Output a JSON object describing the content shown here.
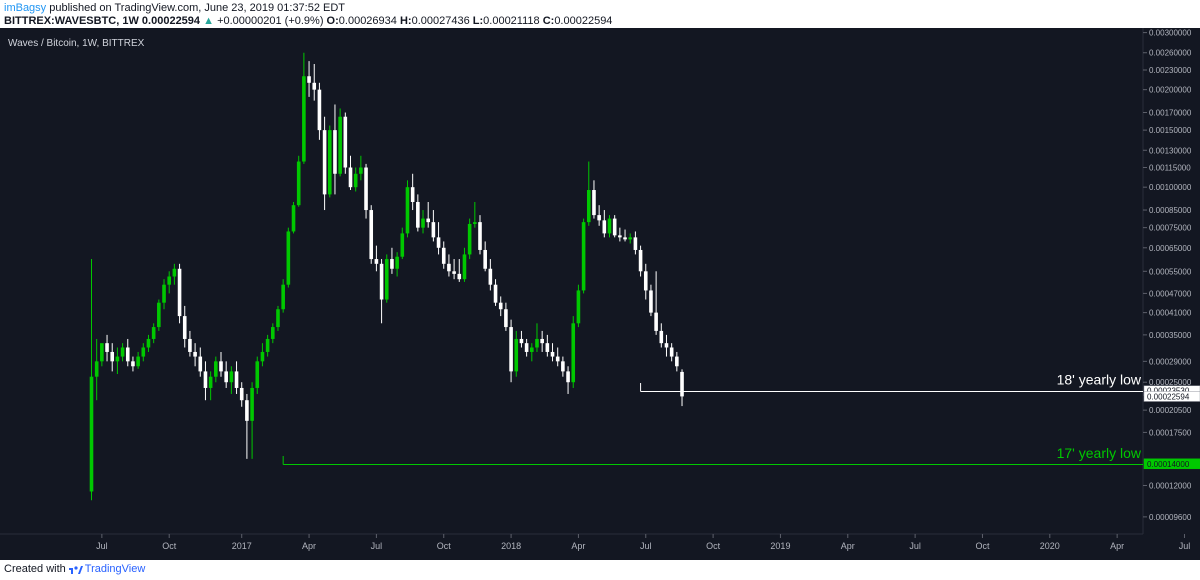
{
  "header": {
    "author": "imBagsy",
    "published": "published on TradingView.com, June 23, 2019 01:37:52 EDT",
    "symbol": "BITTREX:WAVESBTC, 1W",
    "last": "0.00022594",
    "change": "+0.00000201 (+0.9%)",
    "o_label": "O:",
    "o": "0.00026934",
    "h_label": "H:",
    "h": "0.00027436",
    "l_label": "L:",
    "l": "0.00021118",
    "c_label": "C:",
    "c": "0.00022594"
  },
  "footer": {
    "created": "Created with",
    "brand": "TradingView"
  },
  "colors": {
    "bg": "#131722",
    "up": "#00c800",
    "down": "#ffffff",
    "axis_text": "#b2b5be",
    "grid": "#1e222d"
  },
  "chart_data": {
    "type": "candlestick",
    "title": "Waves / Bitcoin, 1W, BITTREX",
    "y_scale": "log",
    "ylim": [
      8.5e-05,
      0.0031
    ],
    "y_ticks": [
      "0.00300000",
      "0.00260000",
      "0.00230000",
      "0.00200000",
      "0.00170000",
      "0.00150000",
      "0.00130000",
      "0.00115000",
      "0.00100000",
      "0.00085000",
      "0.00075000",
      "0.00065000",
      "0.00055000",
      "0.00047000",
      "0.00041000",
      "0.00035000",
      "0.00029000",
      "0.00025000",
      "0.00020500",
      "0.00017500",
      "0.00012000",
      "0.00009600"
    ],
    "x_ticks": [
      {
        "label": "Jul",
        "w": 2
      },
      {
        "label": "Oct",
        "w": 15
      },
      {
        "label": "2017",
        "w": 29
      },
      {
        "label": "Apr",
        "w": 42
      },
      {
        "label": "Jul",
        "w": 55
      },
      {
        "label": "Oct",
        "w": 68
      },
      {
        "label": "2018",
        "w": 81
      },
      {
        "label": "Apr",
        "w": 94
      },
      {
        "label": "Jul",
        "w": 107
      },
      {
        "label": "Oct",
        "w": 120
      },
      {
        "label": "2019",
        "w": 133
      },
      {
        "label": "Apr",
        "w": 146
      },
      {
        "label": "Jul",
        "w": 159
      },
      {
        "label": "Oct",
        "w": 172
      },
      {
        "label": "2020",
        "w": 185
      },
      {
        "label": "Apr",
        "w": 198
      },
      {
        "label": "Jul",
        "w": 211
      }
    ],
    "price_labels": [
      {
        "value": "0.00023530",
        "price": 0.0002353,
        "style": "white"
      },
      {
        "value": "0.00022594",
        "price": 0.00022594,
        "style": "white"
      },
      {
        "value": "0.00014000",
        "price": 0.00014,
        "style": "green"
      }
    ],
    "annotations": [
      {
        "text": "18' yearly low",
        "price": 0.0002353,
        "from_w": 106,
        "color": "#ffffff"
      },
      {
        "text": "17' yearly low",
        "price": 0.00014,
        "from_w": 37,
        "color": "#00c800"
      }
    ],
    "candles": [
      [
        0.000115,
        0.0006,
        0.000108,
        0.00026
      ],
      [
        0.00026,
        0.00034,
        0.00022,
        0.00029
      ],
      [
        0.00029,
        0.00032,
        0.00028,
        0.00033
      ],
      [
        0.00033,
        0.00035,
        0.00029,
        0.00031
      ],
      [
        0.00031,
        0.00033,
        0.00027,
        0.00029
      ],
      [
        0.00029,
        0.00032,
        0.000265,
        0.0003
      ],
      [
        0.0003,
        0.00033,
        0.00029,
        0.00032
      ],
      [
        0.00032,
        0.00034,
        0.00028,
        0.00029
      ],
      [
        0.00029,
        0.0003,
        0.00027,
        0.00028
      ],
      [
        0.00028,
        0.00031,
        0.000275,
        0.0003
      ],
      [
        0.0003,
        0.00033,
        0.00029,
        0.00032
      ],
      [
        0.00032,
        0.00035,
        0.00031,
        0.00034
      ],
      [
        0.00034,
        0.00038,
        0.00033,
        0.00037
      ],
      [
        0.00037,
        0.00045,
        0.00036,
        0.00044
      ],
      [
        0.00044,
        0.00052,
        0.00042,
        0.0005
      ],
      [
        0.0005,
        0.00055,
        0.00047,
        0.00053
      ],
      [
        0.00053,
        0.00058,
        0.0005,
        0.00056
      ],
      [
        0.00056,
        0.00058,
        0.00038,
        0.0004
      ],
      [
        0.0004,
        0.00043,
        0.00032,
        0.00034
      ],
      [
        0.00034,
        0.00036,
        0.0003,
        0.00031
      ],
      [
        0.00031,
        0.00033,
        0.00028,
        0.0003
      ],
      [
        0.0003,
        0.00032,
        0.00026,
        0.00027
      ],
      [
        0.00027,
        0.00029,
        0.00022,
        0.00024
      ],
      [
        0.00024,
        0.00027,
        0.00022,
        0.00026
      ],
      [
        0.00026,
        0.0003,
        0.00025,
        0.00029
      ],
      [
        0.00029,
        0.00031,
        0.00026,
        0.00027
      ],
      [
        0.00027,
        0.00029,
        0.00024,
        0.00025
      ],
      [
        0.00025,
        0.00028,
        0.00023,
        0.00027
      ],
      [
        0.00027,
        0.00029,
        0.00023,
        0.00024
      ],
      [
        0.00024,
        0.00025,
        0.00021,
        0.00022
      ],
      [
        0.00022,
        0.00023,
        0.000145,
        0.00019
      ],
      [
        0.00019,
        0.00025,
        0.000145,
        0.00024
      ],
      [
        0.00024,
        0.0003,
        0.00023,
        0.00029
      ],
      [
        0.00029,
        0.00033,
        0.00028,
        0.00031
      ],
      [
        0.00031,
        0.00035,
        0.0003,
        0.00034
      ],
      [
        0.00034,
        0.00038,
        0.00033,
        0.00037
      ],
      [
        0.00037,
        0.00043,
        0.00036,
        0.00042
      ],
      [
        0.00042,
        0.00052,
        0.00041,
        0.0005
      ],
      [
        0.0005,
        0.00075,
        0.00049,
        0.00073
      ],
      [
        0.00073,
        0.0009,
        0.00072,
        0.00088
      ],
      [
        0.00088,
        0.00125,
        0.00087,
        0.0012
      ],
      [
        0.0012,
        0.0026,
        0.00118,
        0.0022
      ],
      [
        0.0022,
        0.00245,
        0.0019,
        0.0021
      ],
      [
        0.0021,
        0.0024,
        0.00185,
        0.002
      ],
      [
        0.002,
        0.0021,
        0.0014,
        0.0015
      ],
      [
        0.0015,
        0.00165,
        0.00085,
        0.00095
      ],
      [
        0.00095,
        0.00155,
        0.00093,
        0.0015
      ],
      [
        0.0015,
        0.0018,
        0.00095,
        0.0011
      ],
      [
        0.0011,
        0.00175,
        0.00108,
        0.00165
      ],
      [
        0.00165,
        0.0017,
        0.0011,
        0.00115
      ],
      [
        0.00115,
        0.00125,
        0.00098,
        0.001
      ],
      [
        0.001,
        0.00115,
        0.00097,
        0.0011
      ],
      [
        0.0011,
        0.00125,
        0.00105,
        0.00115
      ],
      [
        0.00115,
        0.00118,
        0.0008,
        0.00085
      ],
      [
        0.00085,
        0.00088,
        0.00058,
        0.0006
      ],
      [
        0.0006,
        0.00066,
        0.00055,
        0.00058
      ],
      [
        0.00058,
        0.0006,
        0.00038,
        0.00045
      ],
      [
        0.00045,
        0.00062,
        0.00044,
        0.0006
      ],
      [
        0.0006,
        0.00065,
        0.00054,
        0.00056
      ],
      [
        0.00056,
        0.00063,
        0.00053,
        0.00061
      ],
      [
        0.00061,
        0.00075,
        0.0006,
        0.00072
      ],
      [
        0.00072,
        0.00105,
        0.0007,
        0.001
      ],
      [
        0.001,
        0.0011,
        0.00085,
        0.0009
      ],
      [
        0.0009,
        0.00095,
        0.00073,
        0.00075
      ],
      [
        0.00075,
        0.00085,
        0.00072,
        0.0008
      ],
      [
        0.0008,
        0.0009,
        0.00075,
        0.00078
      ],
      [
        0.00078,
        0.00085,
        0.00068,
        0.0007
      ],
      [
        0.0007,
        0.00078,
        0.00062,
        0.00065
      ],
      [
        0.00065,
        0.00068,
        0.00056,
        0.00058
      ],
      [
        0.00058,
        0.00062,
        0.00053,
        0.00055
      ],
      [
        0.00055,
        0.0006,
        0.00052,
        0.00054
      ],
      [
        0.00054,
        0.0006,
        0.00051,
        0.00052
      ],
      [
        0.00052,
        0.00065,
        0.00051,
        0.00062
      ],
      [
        0.00062,
        0.0008,
        0.0006,
        0.00077
      ],
      [
        0.00077,
        0.0009,
        0.00075,
        0.00078
      ],
      [
        0.00078,
        0.00082,
        0.00062,
        0.00064
      ],
      [
        0.00064,
        0.00068,
        0.00055,
        0.00056
      ],
      [
        0.00056,
        0.0006,
        0.00048,
        0.0005
      ],
      [
        0.0005,
        0.00052,
        0.00043,
        0.00044
      ],
      [
        0.00044,
        0.00046,
        0.0004,
        0.00042
      ],
      [
        0.00042,
        0.00044,
        0.00036,
        0.00037
      ],
      [
        0.00037,
        0.00039,
        0.00025,
        0.00027
      ],
      [
        0.00027,
        0.00036,
        0.00026,
        0.00034
      ],
      [
        0.00034,
        0.00036,
        0.00032,
        0.00033
      ],
      [
        0.00033,
        0.00034,
        0.0003,
        0.00031
      ],
      [
        0.00031,
        0.00033,
        0.00029,
        0.00032
      ],
      [
        0.00032,
        0.00038,
        0.00031,
        0.00034
      ],
      [
        0.00034,
        0.00036,
        0.00031,
        0.00033
      ],
      [
        0.00033,
        0.00035,
        0.0003,
        0.00031
      ],
      [
        0.00031,
        0.00033,
        0.00029,
        0.0003
      ],
      [
        0.0003,
        0.00032,
        0.00028,
        0.00029
      ],
      [
        0.00029,
        0.0003,
        0.00026,
        0.00027
      ],
      [
        0.00027,
        0.00028,
        0.00023,
        0.00025
      ],
      [
        0.00025,
        0.0004,
        0.00024,
        0.00038
      ],
      [
        0.00038,
        0.0005,
        0.00037,
        0.00048
      ],
      [
        0.00048,
        0.0008,
        0.00047,
        0.00078
      ],
      [
        0.00078,
        0.0012,
        0.00076,
        0.00098
      ],
      [
        0.00098,
        0.00105,
        0.0008,
        0.00082
      ],
      [
        0.00082,
        0.00088,
        0.00076,
        0.00079
      ],
      [
        0.00079,
        0.00085,
        0.0007,
        0.00072
      ],
      [
        0.00072,
        0.00082,
        0.0007,
        0.0008
      ],
      [
        0.0008,
        0.00082,
        0.0007,
        0.00071
      ],
      [
        0.00071,
        0.00075,
        0.00068,
        0.0007
      ],
      [
        0.0007,
        0.00074,
        0.00068,
        0.00069
      ],
      [
        0.00069,
        0.00072,
        0.00067,
        0.0007
      ],
      [
        0.0007,
        0.00073,
        0.00062,
        0.00064
      ],
      [
        0.00064,
        0.00066,
        0.00053,
        0.00055
      ],
      [
        0.00055,
        0.00058,
        0.00045,
        0.00048
      ],
      [
        0.00048,
        0.0005,
        0.0004,
        0.00041
      ],
      [
        0.00041,
        0.00055,
        0.00035,
        0.00036
      ],
      [
        0.00036,
        0.00038,
        0.00032,
        0.00033
      ],
      [
        0.00033,
        0.00035,
        0.0003,
        0.00032
      ],
      [
        0.00032,
        0.00033,
        0.00029,
        0.0003
      ],
      [
        0.0003,
        0.00031,
        0.00027,
        0.00028
      ],
      [
        0.000269,
        0.000274,
        0.000211,
        0.000226
      ]
    ]
  }
}
